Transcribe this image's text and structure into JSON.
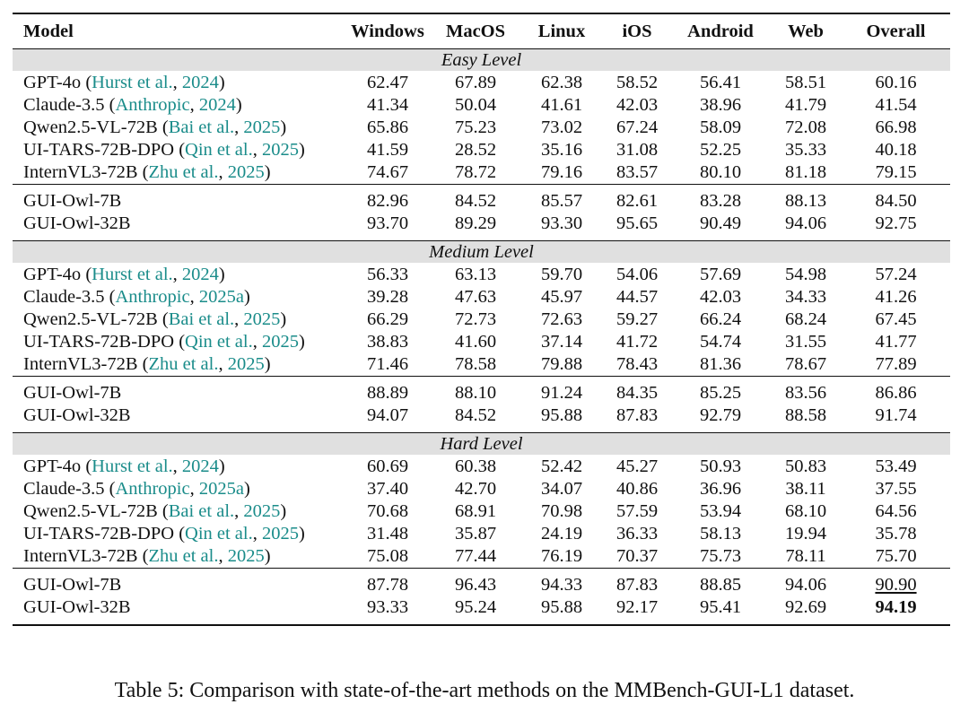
{
  "columns": [
    "Model",
    "Windows",
    "MacOS",
    "Linux",
    "iOS",
    "Android",
    "Web",
    "Overall"
  ],
  "sections": [
    {
      "label": "Easy Level",
      "baselines": [
        {
          "name": "GPT-4o",
          "cite_a": "Hurst et al.",
          "cite_b": "2024",
          "values": [
            "62.47",
            "67.89",
            "62.38",
            "58.52",
            "56.41",
            "58.51",
            "60.16"
          ]
        },
        {
          "name": "Claude-3.5",
          "cite_a": "Anthropic",
          "cite_b": "2024",
          "values": [
            "41.34",
            "50.04",
            "41.61",
            "42.03",
            "38.96",
            "41.79",
            "41.54"
          ]
        },
        {
          "name": "Qwen2.5-VL-72B",
          "cite_a": "Bai et al.",
          "cite_b": "2025",
          "values": [
            "65.86",
            "75.23",
            "73.02",
            "67.24",
            "58.09",
            "72.08",
            "66.98"
          ]
        },
        {
          "name": "UI-TARS-72B-DPO",
          "cite_a": "Qin et al.",
          "cite_b": "2025",
          "values": [
            "41.59",
            "28.52",
            "35.16",
            "31.08",
            "52.25",
            "35.33",
            "40.18"
          ]
        },
        {
          "name": "InternVL3-72B",
          "cite_a": "Zhu et al.",
          "cite_b": "2025",
          "values": [
            "74.67",
            "78.72",
            "79.16",
            "83.57",
            "80.10",
            "81.18",
            "79.15"
          ]
        }
      ],
      "ours": [
        {
          "name": "GUI-Owl-7B",
          "values": [
            "82.96",
            "84.52",
            "85.57",
            "82.61",
            "83.28",
            "88.13",
            "84.50"
          ]
        },
        {
          "name": "GUI-Owl-32B",
          "values": [
            "93.70",
            "89.29",
            "93.30",
            "95.65",
            "90.49",
            "94.06",
            "92.75"
          ]
        }
      ]
    },
    {
      "label": "Medium Level",
      "baselines": [
        {
          "name": "GPT-4o",
          "cite_a": "Hurst et al.",
          "cite_b": "2024",
          "values": [
            "56.33",
            "63.13",
            "59.70",
            "54.06",
            "57.69",
            "54.98",
            "57.24"
          ]
        },
        {
          "name": "Claude-3.5",
          "cite_a": "Anthropic",
          "cite_b": "2025a",
          "values": [
            "39.28",
            "47.63",
            "45.97",
            "44.57",
            "42.03",
            "34.33",
            "41.26"
          ]
        },
        {
          "name": "Qwen2.5-VL-72B",
          "cite_a": "Bai et al.",
          "cite_b": "2025",
          "values": [
            "66.29",
            "72.73",
            "72.63",
            "59.27",
            "66.24",
            "68.24",
            "67.45"
          ]
        },
        {
          "name": "UI-TARS-72B-DPO",
          "cite_a": "Qin et al.",
          "cite_b": "2025",
          "values": [
            "38.83",
            "41.60",
            "37.14",
            "41.72",
            "54.74",
            "31.55",
            "41.77"
          ]
        },
        {
          "name": "InternVL3-72B",
          "cite_a": "Zhu et al.",
          "cite_b": "2025",
          "values": [
            "71.46",
            "78.58",
            "79.88",
            "78.43",
            "81.36",
            "78.67",
            "77.89"
          ]
        }
      ],
      "ours": [
        {
          "name": "GUI-Owl-7B",
          "values": [
            "88.89",
            "88.10",
            "91.24",
            "84.35",
            "85.25",
            "83.56",
            "86.86"
          ]
        },
        {
          "name": "GUI-Owl-32B",
          "values": [
            "94.07",
            "84.52",
            "95.88",
            "87.83",
            "92.79",
            "88.58",
            "91.74"
          ]
        }
      ]
    },
    {
      "label": "Hard Level",
      "baselines": [
        {
          "name": "GPT-4o",
          "cite_a": "Hurst et al.",
          "cite_b": "2024",
          "values": [
            "60.69",
            "60.38",
            "52.42",
            "45.27",
            "50.93",
            "50.83",
            "53.49"
          ]
        },
        {
          "name": "Claude-3.5",
          "cite_a": "Anthropic",
          "cite_b": "2025a",
          "values": [
            "37.40",
            "42.70",
            "34.07",
            "40.86",
            "36.96",
            "38.11",
            "37.55"
          ]
        },
        {
          "name": "Qwen2.5-VL-72B",
          "cite_a": "Bai et al.",
          "cite_b": "2025",
          "values": [
            "70.68",
            "68.91",
            "70.98",
            "57.59",
            "53.94",
            "68.10",
            "64.56"
          ]
        },
        {
          "name": "UI-TARS-72B-DPO",
          "cite_a": "Qin et al.",
          "cite_b": "2025",
          "values": [
            "31.48",
            "35.87",
            "24.19",
            "36.33",
            "58.13",
            "19.94",
            "35.78"
          ]
        },
        {
          "name": "InternVL3-72B",
          "cite_a": "Zhu et al.",
          "cite_b": "2025",
          "values": [
            "75.08",
            "77.44",
            "76.19",
            "70.37",
            "75.73",
            "78.11",
            "75.70"
          ]
        }
      ],
      "ours": [
        {
          "name": "GUI-Owl-7B",
          "values": [
            "87.78",
            "96.43",
            "94.33",
            "87.83",
            "88.85",
            "94.06",
            "90.90"
          ],
          "overall_style": "underline"
        },
        {
          "name": "GUI-Owl-32B",
          "values": [
            "93.33",
            "95.24",
            "95.88",
            "92.17",
            "95.41",
            "92.69",
            "94.19"
          ],
          "overall_style": "bold"
        }
      ]
    }
  ],
  "caption": "Table 5: Comparison with state-of-the-art methods on the MMBench-GUI-L1 dataset.",
  "colors": {
    "citation": "#1a8c8a",
    "section_bg": "#e0e0e0"
  }
}
